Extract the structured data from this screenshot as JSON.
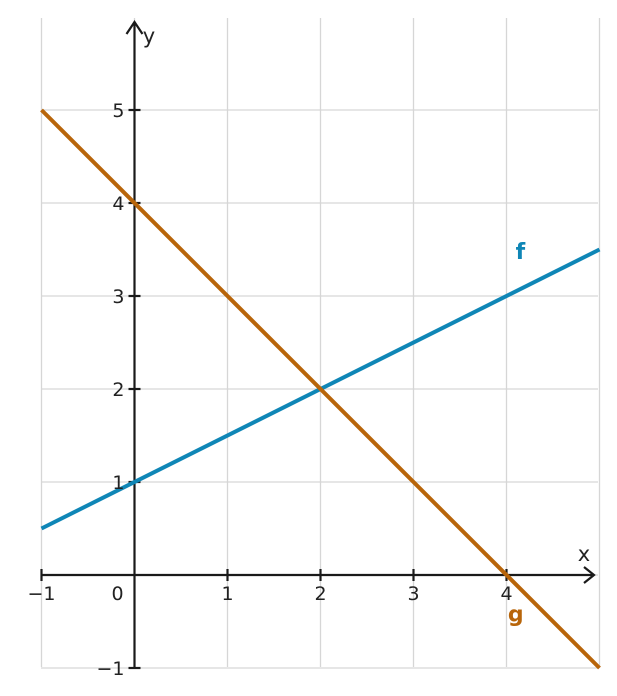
{
  "chart_data": {
    "type": "line",
    "xlabel": "x",
    "ylabel": "y",
    "xlim": [
      -1,
      5
    ],
    "ylim": [
      -1,
      6
    ],
    "x_ticks": [
      -1,
      0,
      1,
      2,
      3,
      4
    ],
    "y_ticks": [
      -1,
      1,
      2,
      3,
      4,
      5
    ],
    "x_tick_labels": [
      "−1",
      "0",
      "1",
      "2",
      "3",
      "4"
    ],
    "y_tick_labels": [
      "−1",
      "1",
      "2",
      "3",
      "4",
      "5"
    ],
    "grid": true,
    "series": [
      {
        "name": "f",
        "color": "#0f86b6",
        "x": [
          -1,
          5
        ],
        "y": [
          0.5,
          3.5
        ],
        "label_at": [
          4.15,
          3.4
        ]
      },
      {
        "name": "g",
        "color": "#b8650a",
        "x": [
          -1,
          5
        ],
        "y": [
          5,
          -1
        ],
        "label_at": [
          4.1,
          -0.5
        ]
      }
    ]
  }
}
